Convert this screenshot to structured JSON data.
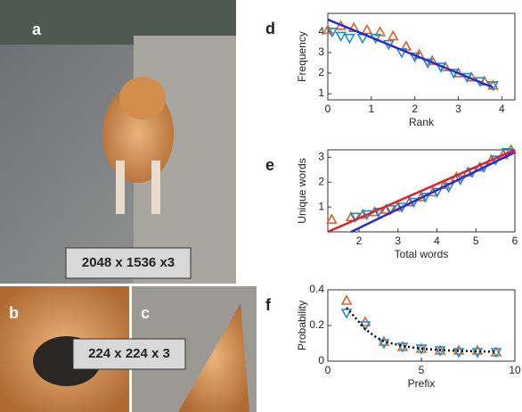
{
  "panels": {
    "a": "a",
    "b": "b",
    "c": "c",
    "size_large": "2048 x 1536 x3",
    "size_small": "224 x 224 x 3"
  },
  "chart_data": [
    {
      "type": "scatter",
      "panel": "d",
      "xlabel": "Rank",
      "ylabel": "Frequency",
      "xlim": [
        0,
        4.3
      ],
      "ylim": [
        0.7,
        4.9
      ],
      "xticks": [
        0,
        1,
        2,
        3,
        4
      ],
      "yticks": [
        1,
        2,
        3,
        4
      ],
      "series": [
        {
          "marker": "triangle-up",
          "color": "#e0622a",
          "x": [
            0,
            0.3,
            0.6,
            0.9,
            1.2,
            1.5,
            1.8,
            2.1,
            2.4,
            2.7,
            3.0,
            3.3,
            3.6,
            3.8
          ],
          "values": [
            4.1,
            4.3,
            4.2,
            4.1,
            4.0,
            3.8,
            3.3,
            2.9,
            2.6,
            2.3,
            2.0,
            1.8,
            1.6,
            1.4
          ]
        },
        {
          "marker": "triangle-down",
          "color": "#1f8fc8",
          "x": [
            0.1,
            0.3,
            0.5,
            0.8,
            1.1,
            1.4,
            1.7,
            2.0,
            2.3,
            2.6,
            2.9,
            3.2,
            3.5,
            3.8
          ],
          "values": [
            4.0,
            3.8,
            3.7,
            3.7,
            3.7,
            3.4,
            3.0,
            2.8,
            2.5,
            2.3,
            2.0,
            1.8,
            1.6,
            1.4
          ]
        },
        {
          "marker": "line",
          "color": "#2a2ad0",
          "x": [
            0,
            3.8
          ],
          "values": [
            4.6,
            1.3
          ]
        }
      ]
    },
    {
      "type": "scatter",
      "panel": "e",
      "xlabel": "Total words",
      "ylabel": "Unique words",
      "xlim": [
        1.2,
        6
      ],
      "ylim": [
        0,
        3.3
      ],
      "xticks": [
        2,
        3,
        4,
        5,
        6
      ],
      "yticks": [
        1,
        2,
        3
      ],
      "series": [
        {
          "marker": "triangle-up",
          "color": "#e0622a",
          "x": [
            1.3,
            1.8,
            2.1,
            2.4,
            2.7,
            3.0,
            3.3,
            3.6,
            3.9,
            4.2,
            4.5,
            4.8,
            5.1,
            5.4,
            5.7,
            5.9
          ],
          "values": [
            0.5,
            0.6,
            0.7,
            0.8,
            0.9,
            1.0,
            1.2,
            1.4,
            1.6,
            1.9,
            2.2,
            2.4,
            2.6,
            2.9,
            3.1,
            3.3
          ]
        },
        {
          "marker": "triangle-down",
          "color": "#1f8fc8",
          "x": [
            1.9,
            2.2,
            2.5,
            2.8,
            3.1,
            3.4,
            3.7,
            4.0,
            4.3,
            4.6,
            4.9,
            5.2,
            5.5,
            5.8
          ],
          "values": [
            0.6,
            0.7,
            0.8,
            0.9,
            1.0,
            1.2,
            1.4,
            1.6,
            1.8,
            2.1,
            2.4,
            2.6,
            2.9,
            3.2
          ]
        },
        {
          "marker": "line",
          "color": "#e0202a",
          "x": [
            1.2,
            6
          ],
          "values": [
            0,
            3.3
          ]
        },
        {
          "marker": "line",
          "color": "#2a2ad0",
          "x": [
            1.8,
            6
          ],
          "values": [
            0,
            3.2
          ]
        }
      ]
    },
    {
      "type": "scatter",
      "panel": "f",
      "xlabel": "Prefix",
      "ylabel": "Probability",
      "xlim": [
        0,
        10
      ],
      "ylim": [
        0,
        0.4
      ],
      "xticks": [
        0,
        5,
        10
      ],
      "yticks": [
        0,
        0.2,
        0.4
      ],
      "series": [
        {
          "marker": "triangle-up",
          "color": "#e0622a",
          "x": [
            1,
            2,
            3,
            4,
            5,
            6,
            7,
            8,
            9
          ],
          "values": [
            0.34,
            0.22,
            0.11,
            0.08,
            0.07,
            0.06,
            0.06,
            0.06,
            0.05
          ]
        },
        {
          "marker": "triangle-down",
          "color": "#1f8fc8",
          "x": [
            1,
            2,
            3,
            4,
            5,
            6,
            7,
            8,
            9
          ],
          "values": [
            0.27,
            0.2,
            0.1,
            0.08,
            0.07,
            0.06,
            0.05,
            0.05,
            0.05
          ]
        },
        {
          "marker": "dotted",
          "color": "#000000",
          "x": [
            1,
            1.5,
            2,
            2.5,
            3,
            4,
            5,
            6,
            7,
            8,
            9
          ],
          "values": [
            0.3,
            0.24,
            0.18,
            0.14,
            0.11,
            0.085,
            0.07,
            0.062,
            0.058,
            0.055,
            0.053
          ]
        }
      ]
    }
  ]
}
